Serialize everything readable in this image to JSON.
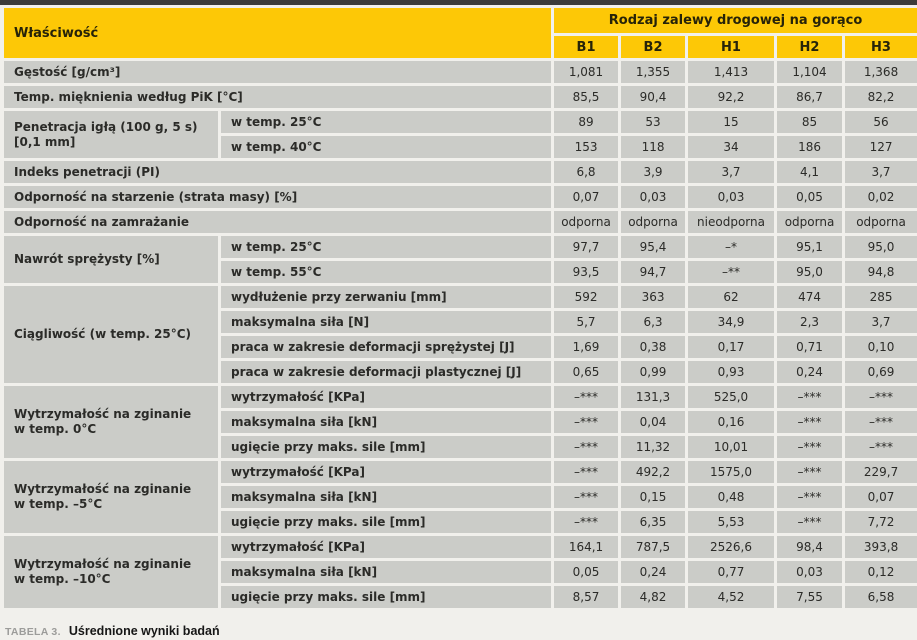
{
  "colors": {
    "header_bg": "#fdc806",
    "cell_bg": "#cbccc8",
    "top_bar": "#3c3c3a",
    "page_bg": "#f1f0ec",
    "cell_text": "#2b2b28",
    "caption_prefix_text": "#9c9c9a",
    "caption_title_text": "#161616"
  },
  "table": {
    "header": {
      "property_label": "Właściwość",
      "group_label": "Rodzaj zalewy drogowej na gorąco",
      "columns": [
        "B1",
        "B2",
        "H1",
        "H2",
        "H3"
      ]
    },
    "groups": [
      {
        "label": "Gęstość [g/cm³]",
        "rows": [
          {
            "sub": "",
            "values": [
              "1,081",
              "1,355",
              "1,413",
              "1,104",
              "1,368"
            ]
          }
        ]
      },
      {
        "label": "Temp. mięknienia według PiK [°C]",
        "rows": [
          {
            "sub": "",
            "values": [
              "85,5",
              "90,4",
              "92,2",
              "86,7",
              "82,2"
            ]
          }
        ]
      },
      {
        "label": "Penetracja igłą (100 g, 5 s)\n[0,1 mm]",
        "rows": [
          {
            "sub": "w temp. 25°C",
            "values": [
              "89",
              "53",
              "15",
              "85",
              "56"
            ]
          },
          {
            "sub": "w temp. 40°C",
            "values": [
              "153",
              "118",
              "34",
              "186",
              "127"
            ]
          }
        ]
      },
      {
        "label": "Indeks penetracji (PI)",
        "rows": [
          {
            "sub": "",
            "values": [
              "6,8",
              "3,9",
              "3,7",
              "4,1",
              "3,7"
            ]
          }
        ]
      },
      {
        "label": "Odporność na starzenie (strata masy) [%]",
        "rows": [
          {
            "sub": "",
            "values": [
              "0,07",
              "0,03",
              "0,03",
              "0,05",
              "0,02"
            ]
          }
        ]
      },
      {
        "label": "Odporność na zamrażanie",
        "rows": [
          {
            "sub": "",
            "values": [
              "odporna",
              "odporna",
              "nieodporna",
              "odporna",
              "odporna"
            ]
          }
        ]
      },
      {
        "label": "Nawrót sprężysty [%]",
        "rows": [
          {
            "sub": "w temp. 25°C",
            "values": [
              "97,7",
              "95,4",
              "–*",
              "95,1",
              "95,0"
            ]
          },
          {
            "sub": "w temp. 55°C",
            "values": [
              "93,5",
              "94,7",
              "–**",
              "95,0",
              "94,8"
            ]
          }
        ]
      },
      {
        "label": "Ciągliwość (w temp. 25°C)",
        "rows": [
          {
            "sub": "wydłużenie przy zerwaniu [mm]",
            "values": [
              "592",
              "363",
              "62",
              "474",
              "285"
            ]
          },
          {
            "sub": "maksymalna siła [N]",
            "values": [
              "5,7",
              "6,3",
              "34,9",
              "2,3",
              "3,7"
            ]
          },
          {
            "sub": "praca w zakresie deformacji sprężystej [J]",
            "values": [
              "1,69",
              "0,38",
              "0,17",
              "0,71",
              "0,10"
            ]
          },
          {
            "sub": "praca w zakresie deformacji plastycznej [J]",
            "values": [
              "0,65",
              "0,99",
              "0,93",
              "0,24",
              "0,69"
            ]
          }
        ]
      },
      {
        "label": "Wytrzymałość na zginanie\nw temp. 0°C",
        "rows": [
          {
            "sub": "wytrzymałość [KPa]",
            "values": [
              "–***",
              "131,3",
              "525,0",
              "–***",
              "–***"
            ]
          },
          {
            "sub": "maksymalna siła [kN]",
            "values": [
              "–***",
              "0,04",
              "0,16",
              "–***",
              "–***"
            ]
          },
          {
            "sub": "ugięcie przy maks. sile [mm]",
            "values": [
              "–***",
              "11,32",
              "10,01",
              "–***",
              "–***"
            ]
          }
        ]
      },
      {
        "label": "Wytrzymałość na zginanie\nw temp. –5°C",
        "rows": [
          {
            "sub": "wytrzymałość [KPa]",
            "values": [
              "–***",
              "492,2",
              "1575,0",
              "–***",
              "229,7"
            ]
          },
          {
            "sub": "maksymalna siła [kN]",
            "values": [
              "–***",
              "0,15",
              "0,48",
              "–***",
              "0,07"
            ]
          },
          {
            "sub": "ugięcie przy maks. sile [mm]",
            "values": [
              "–***",
              "6,35",
              "5,53",
              "–***",
              "7,72"
            ]
          }
        ]
      },
      {
        "label": "Wytrzymałość na zginanie\nw temp. –10°C",
        "rows": [
          {
            "sub": "wytrzymałość [KPa]",
            "values": [
              "164,1",
              "787,5",
              "2526,6",
              "98,4",
              "393,8"
            ]
          },
          {
            "sub": "maksymalna siła [kN]",
            "values": [
              "0,05",
              "0,24",
              "0,77",
              "0,03",
              "0,12"
            ]
          },
          {
            "sub": "ugięcie przy maks. sile [mm]",
            "values": [
              "8,57",
              "4,82",
              "4,52",
              "7,55",
              "6,58"
            ]
          }
        ]
      }
    ]
  },
  "caption": {
    "prefix": "TABELA 3.",
    "title": "Uśrednione wyniki badań"
  }
}
